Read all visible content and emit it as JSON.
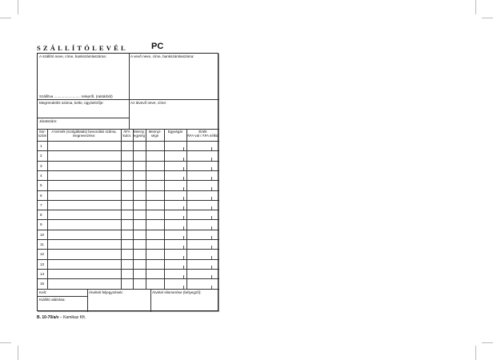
{
  "header": {
    "title": "SZÁLLÍTÓLEVÉL",
    "code": "PC"
  },
  "fields": {
    "supplier": "A szállító neve, címe, bankszámlaszáma:",
    "buyer": "A vevő neve, címe, bankszámlaszáma:",
    "delivery": "Szállítva .......................... telepről, (raktárból)",
    "order": "Megrendelés száma, kelte, ügyintézője:",
    "receiver": "Az átvevő neve, címe:",
    "route": "Járatszám:",
    "date": "Kelt:",
    "issuer": "Kiállító aláírása:",
    "notes": "Átvételi feljegyzések:",
    "acknowledge": "Átvétel elismerése (bélyegző):"
  },
  "table": {
    "columns": [
      "Sor-\nszám",
      "A termék (szolgáltatás) besorolási száma,\nmegnevezése:",
      "ÁFA\nkulcs",
      "Menny.\negység",
      "Mennyi-\nsége",
      "Egységár",
      "Érték\nÁFA-val / ÁFA nélkül"
    ],
    "rows": [
      "1",
      "2",
      "3",
      "4",
      "5",
      "6",
      "7",
      "8",
      "9",
      "10",
      "11",
      "12",
      "13",
      "14",
      "15"
    ]
  },
  "footer": {
    "code": "B. 10-70/a/v",
    "publisher": "–  Kamikaz Kft."
  }
}
